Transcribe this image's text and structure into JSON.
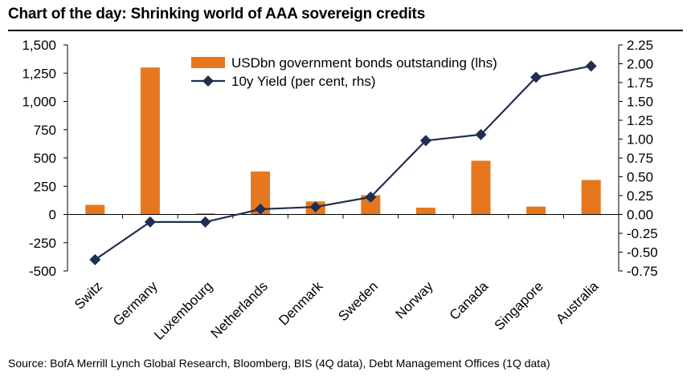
{
  "title": "Chart of the day: Shrinking world of AAA sovereign credits",
  "source": "Source:  BofA Merrill Lynch Global Research, Bloomberg, BIS (4Q data), Debt Management Offices (1Q data)",
  "colors": {
    "bar": "#E5781F",
    "line": "#1F2F4F",
    "axis": "#000000"
  },
  "chart_data": {
    "type": "bar+line",
    "categories": [
      "Switz",
      "Germany",
      "Luxembourg",
      "Netherlands",
      "Denmark",
      "Sweden",
      "Norway",
      "Canada",
      "Singapore",
      "Australia"
    ],
    "series": [
      {
        "name": "USDbn government bonds outstanding (lhs)",
        "type": "bar",
        "axis": "left",
        "values": [
          85,
          1300,
          10,
          380,
          115,
          170,
          60,
          475,
          70,
          305
        ]
      },
      {
        "name": "10y Yield (per cent, rhs)",
        "type": "line",
        "axis": "right",
        "values": [
          -0.6,
          -0.1,
          -0.1,
          0.07,
          0.1,
          0.23,
          0.98,
          1.06,
          1.82,
          1.97
        ]
      }
    ],
    "left_axis": {
      "min": -500,
      "max": 1500,
      "ticks": [
        "1,500",
        "1,250",
        "1,000",
        "750",
        "500",
        "250",
        "0",
        "-250",
        "-500"
      ],
      "tick_values": [
        1500,
        1250,
        1000,
        750,
        500,
        250,
        0,
        -250,
        -500
      ]
    },
    "right_axis": {
      "min": -0.75,
      "max": 2.25,
      "ticks": [
        "2.25",
        "2.00",
        "1.75",
        "1.50",
        "1.25",
        "1.00",
        "0.75",
        "0.50",
        "0.25",
        "0.00",
        "-0.25",
        "-0.50",
        "-0.75"
      ],
      "tick_values": [
        2.25,
        2.0,
        1.75,
        1.5,
        1.25,
        1.0,
        0.75,
        0.5,
        0.25,
        0.0,
        -0.25,
        -0.5,
        -0.75
      ]
    },
    "legend_position": "top-right",
    "grid": false
  }
}
